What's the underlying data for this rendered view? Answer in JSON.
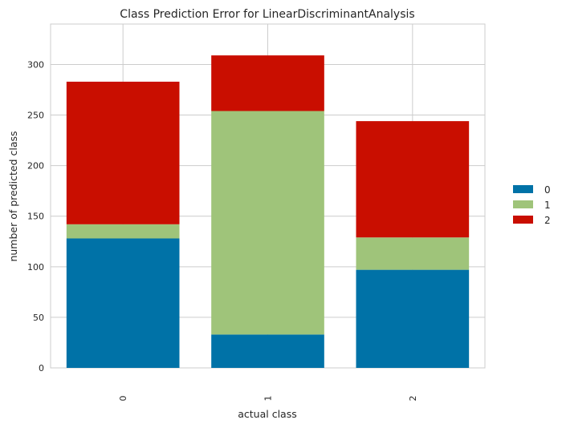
{
  "chart_data": {
    "type": "bar",
    "stacked": true,
    "title": "Class Prediction Error for LinearDiscriminantAnalysis",
    "xlabel": "actual class",
    "ylabel": "number of predicted class",
    "categories": [
      "0",
      "1",
      "2"
    ],
    "series": [
      {
        "name": "0",
        "color": "#0072a7",
        "values": [
          128,
          33,
          97
        ]
      },
      {
        "name": "1",
        "color": "#9fc47a",
        "values": [
          14,
          221,
          32
        ]
      },
      {
        "name": "2",
        "color": "#c90e00",
        "values": [
          141,
          55,
          115
        ]
      }
    ],
    "yticks": [
      "0",
      "50",
      "100",
      "150",
      "200",
      "250",
      "300"
    ],
    "ylim": [
      0,
      340
    ],
    "grid": true,
    "legend_position": "right"
  }
}
